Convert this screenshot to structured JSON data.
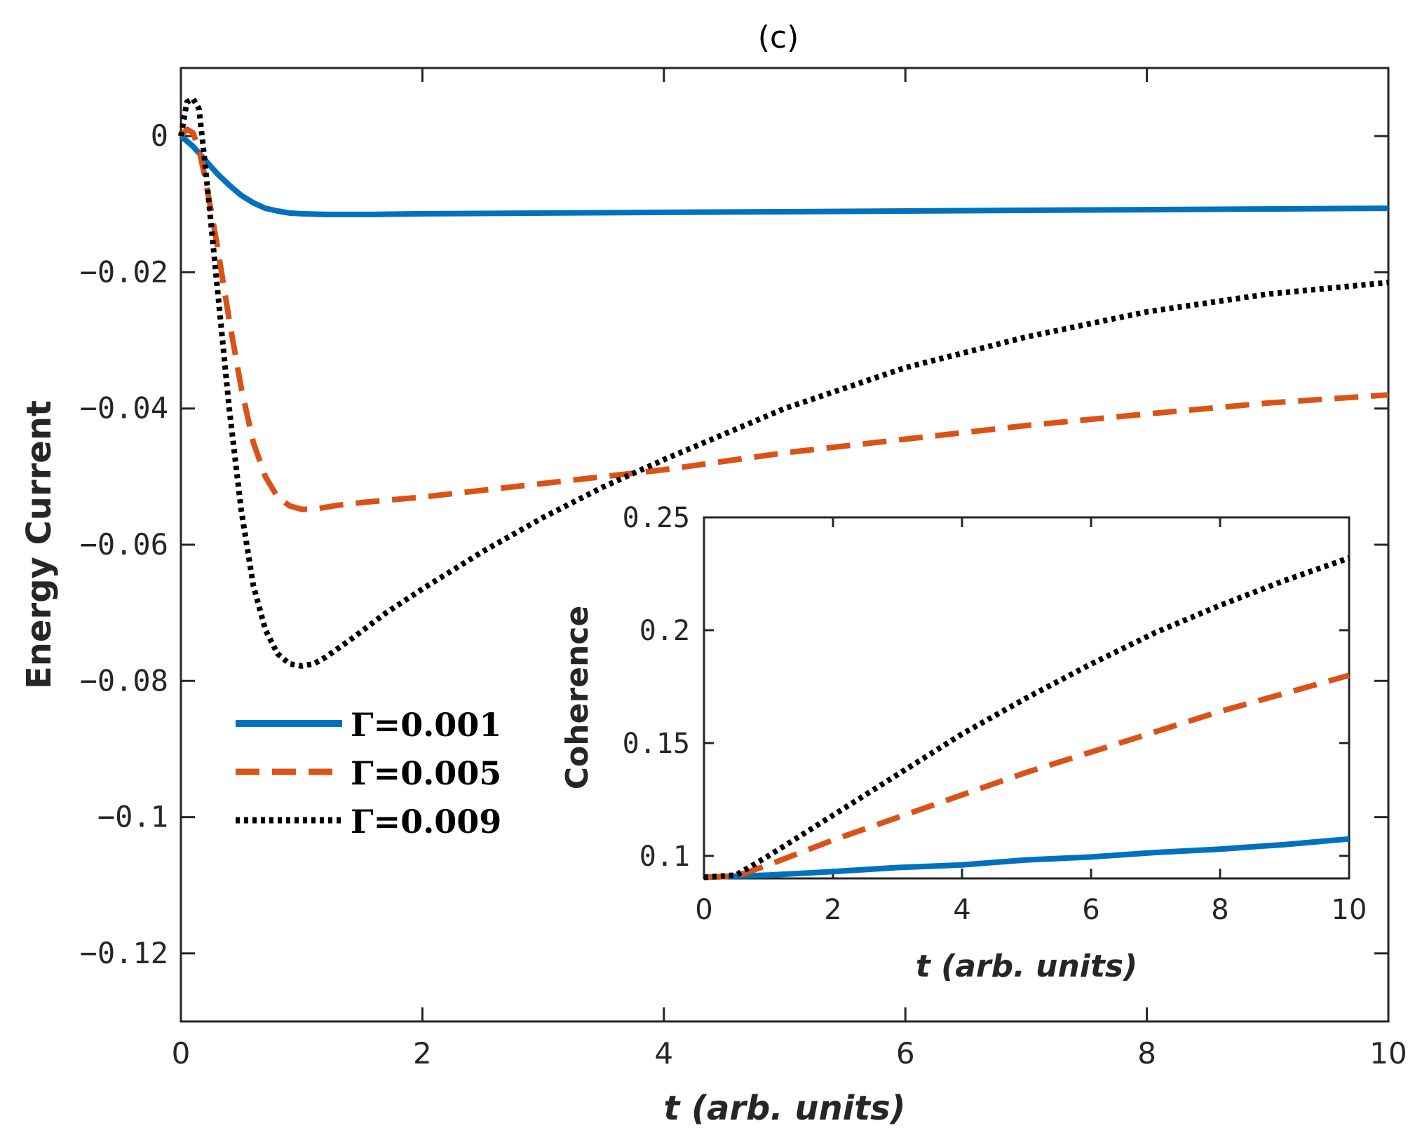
{
  "chart_data": [
    {
      "type": "line",
      "title": "(c)",
      "xlabel": "t (arb. units)",
      "ylabel": "Energy Current",
      "xlim": [
        0,
        10
      ],
      "ylim": [
        -0.13,
        0.01
      ],
      "xticks": [
        0,
        2,
        4,
        6,
        8,
        10
      ],
      "xtick_labels": [
        "0",
        "2",
        "4",
        "6",
        "8",
        "10"
      ],
      "yticks": [
        0,
        -0.02,
        -0.04,
        -0.06,
        -0.08,
        -0.1,
        -0.12
      ],
      "ytick_labels": [
        "0",
        "−0.02",
        "−0.04",
        "−0.06",
        "−0.08",
        "−0.1",
        "−0.12"
      ],
      "legend_position": "lower-left",
      "series": [
        {
          "name": "Γ=0.001",
          "color": "#0072BD",
          "style": "solid",
          "x": [
            0,
            0.1,
            0.2,
            0.3,
            0.4,
            0.5,
            0.6,
            0.7,
            0.8,
            0.9,
            1.0,
            1.2,
            1.4,
            1.6,
            2,
            3,
            4,
            5,
            6,
            7,
            8,
            9,
            10
          ],
          "y": [
            0,
            -0.0015,
            -0.0035,
            -0.0055,
            -0.0072,
            -0.0087,
            -0.0098,
            -0.0106,
            -0.011,
            -0.0113,
            -0.0114,
            -0.0115,
            -0.0115,
            -0.0115,
            -0.0114,
            -0.0113,
            -0.0112,
            -0.0111,
            -0.011,
            -0.0109,
            -0.0108,
            -0.0107,
            -0.0106
          ]
        },
        {
          "name": "Γ=0.005",
          "color": "#D95319",
          "style": "dashed",
          "x": [
            0,
            0.05,
            0.1,
            0.15,
            0.2,
            0.3,
            0.4,
            0.5,
            0.6,
            0.7,
            0.8,
            0.9,
            1.0,
            1.1,
            1.2,
            1.3,
            1.5,
            2,
            3,
            4,
            5,
            6,
            7,
            8,
            9,
            10
          ],
          "y": [
            0,
            0.001,
            0.0005,
            -0.002,
            -0.006,
            -0.016,
            -0.027,
            -0.037,
            -0.045,
            -0.05,
            -0.053,
            -0.0543,
            -0.0548,
            -0.0548,
            -0.0545,
            -0.0542,
            -0.0538,
            -0.053,
            -0.051,
            -0.049,
            -0.0465,
            -0.0445,
            -0.0425,
            -0.0408,
            -0.0392,
            -0.038
          ]
        },
        {
          "name": "Γ=0.009",
          "color": "#000000",
          "style": "dotted",
          "x": [
            0,
            0.05,
            0.1,
            0.15,
            0.2,
            0.3,
            0.4,
            0.5,
            0.6,
            0.7,
            0.8,
            0.9,
            1.0,
            1.1,
            1.2,
            1.4,
            1.7,
            2,
            2.5,
            3,
            3.5,
            4,
            5,
            6,
            7,
            8,
            9,
            10
          ],
          "y": [
            0,
            0.005,
            0.0055,
            0.004,
            -0.004,
            -0.022,
            -0.04,
            -0.055,
            -0.066,
            -0.0725,
            -0.076,
            -0.0775,
            -0.0778,
            -0.0775,
            -0.0765,
            -0.074,
            -0.07,
            -0.0665,
            -0.061,
            -0.056,
            -0.0515,
            -0.0475,
            -0.04,
            -0.034,
            -0.0295,
            -0.0258,
            -0.0232,
            -0.0215
          ]
        }
      ]
    },
    {
      "type": "line",
      "title": "",
      "xlabel": "t (arb. units)",
      "ylabel": "Coherence",
      "xlim": [
        0,
        10
      ],
      "ylim": [
        0.09,
        0.25
      ],
      "xticks": [
        0,
        2,
        4,
        6,
        8,
        10
      ],
      "xtick_labels": [
        "0",
        "2",
        "4",
        "6",
        "8",
        "10"
      ],
      "yticks": [
        0.1,
        0.15,
        0.2,
        0.25
      ],
      "ytick_labels": [
        "0.1",
        "0.15",
        "0.2",
        "0.25"
      ],
      "series": [
        {
          "name": "Γ=0.001",
          "color": "#0072BD",
          "style": "solid",
          "x": [
            0,
            1,
            2,
            3,
            4,
            5,
            6,
            7,
            8,
            9,
            10
          ],
          "y": [
            0.0905,
            0.0915,
            0.093,
            0.0948,
            0.096,
            0.0982,
            0.0995,
            0.1015,
            0.103,
            0.105,
            0.1075
          ]
        },
        {
          "name": "Γ=0.005",
          "color": "#D95319",
          "style": "dashed",
          "x": [
            0,
            0.5,
            1,
            2,
            3,
            4,
            5,
            6,
            7,
            8,
            9,
            10
          ],
          "y": [
            0.0905,
            0.091,
            0.096,
            0.107,
            0.117,
            0.127,
            0.137,
            0.146,
            0.155,
            0.164,
            0.172,
            0.18
          ]
        },
        {
          "name": "Γ=0.009",
          "color": "#000000",
          "style": "dotted",
          "x": [
            0,
            0.5,
            1,
            2,
            3,
            4,
            5,
            6,
            7,
            8,
            9,
            10
          ],
          "y": [
            0.0905,
            0.0915,
            0.1,
            0.118,
            0.136,
            0.154,
            0.17,
            0.185,
            0.199,
            0.211,
            0.222,
            0.232
          ]
        }
      ]
    }
  ]
}
